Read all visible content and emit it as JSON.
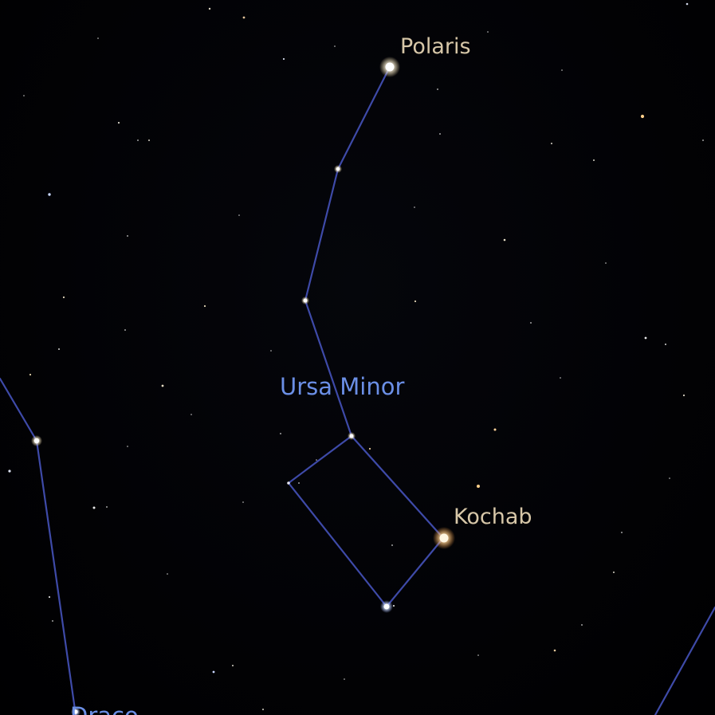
{
  "view": {
    "background": "#010103",
    "line_color": "#3e4aa8",
    "constellation_label_color": "#6b8fe6",
    "star_label_color": "#d7c7a8"
  },
  "labels": {
    "polaris": "Polaris",
    "kochab": "Kochab",
    "ursa_minor": "Ursa Minor",
    "draco": "Draco"
  },
  "named_stars": [
    {
      "id": "polaris",
      "name": "Polaris",
      "color": "#ffffff",
      "glow": "#fff6d8"
    },
    {
      "id": "kochab",
      "name": "Kochab",
      "color": "#fff3d6",
      "glow": "#ffc27a"
    }
  ],
  "constellations": [
    {
      "id": "ursa-minor",
      "name": "Ursa Minor"
    },
    {
      "id": "draco",
      "name": "Draco"
    }
  ]
}
